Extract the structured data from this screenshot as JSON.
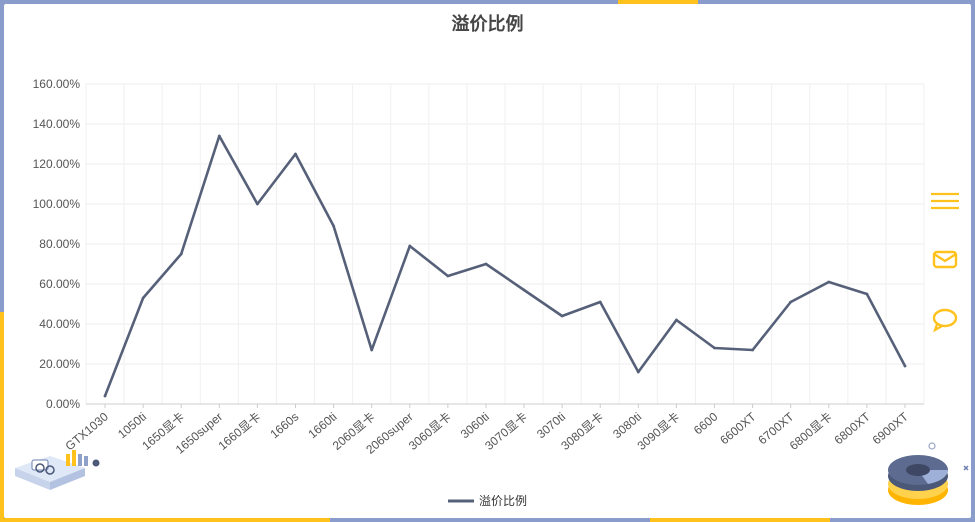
{
  "chart_data": {
    "type": "line",
    "title": "溢价比例",
    "categories": [
      "GTX1030",
      "1050ti",
      "1650显卡",
      "1650super",
      "1660显卡",
      "1660s",
      "1660ti",
      "2060显卡",
      "2060super",
      "3060显卡",
      "3060ti",
      "3070显卡",
      "3070ti",
      "3080显卡",
      "3080ti",
      "3090显卡",
      "6600",
      "6600XT",
      "6700XT",
      "6800显卡",
      "6800XT",
      "6900XT"
    ],
    "series": [
      {
        "name": "溢价比例",
        "values": [
          4,
          53,
          75,
          134,
          100,
          125,
          89,
          27,
          79,
          64,
          70,
          57,
          44,
          51,
          16,
          42,
          28,
          27,
          51,
          61,
          55,
          19
        ],
        "color": "#566179"
      }
    ],
    "y_ticks": [
      "0.00%",
      "20.00%",
      "40.00%",
      "60.00%",
      "80.00%",
      "100.00%",
      "120.00%",
      "140.00%",
      "160.00%"
    ],
    "ylim": [
      0,
      160
    ],
    "y_unit": "%",
    "grid": true,
    "legend_position": "bottom-center"
  },
  "toolbar": {
    "icons": [
      "menu-icon",
      "mail-icon",
      "chat-icon"
    ],
    "color": "#ffc21c"
  }
}
